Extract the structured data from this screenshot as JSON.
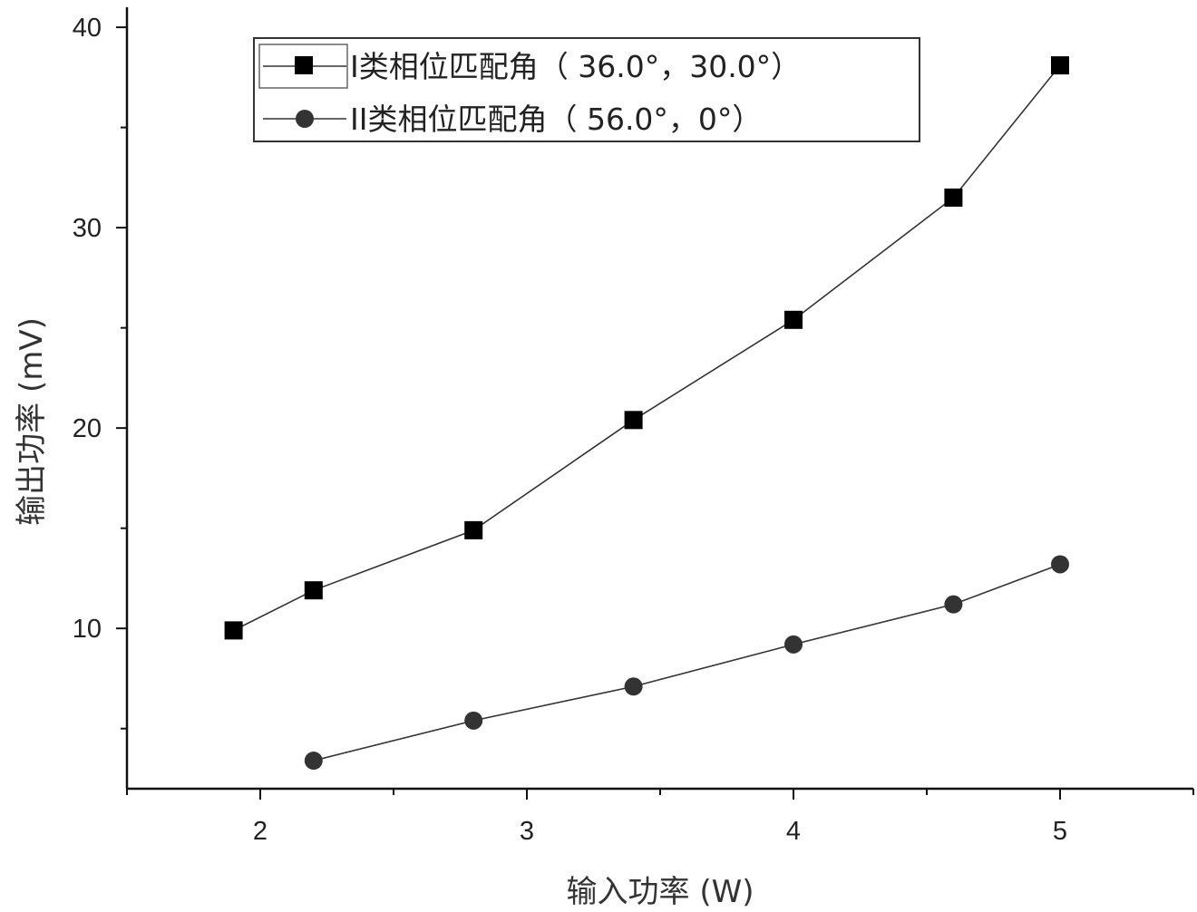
{
  "chart_data": {
    "type": "line",
    "xlabel": "输入功率 (W)",
    "ylabel": "输出功率 (mV)",
    "xlim": [
      1.5,
      5.5
    ],
    "ylim": [
      2,
      41
    ],
    "x_ticks": [
      2,
      3,
      4,
      5
    ],
    "x_tick_labels": [
      "2",
      "3",
      "4",
      "5"
    ],
    "y_ticks": [
      10,
      20,
      30,
      40
    ],
    "y_tick_labels": [
      "10",
      "20",
      "30",
      "40"
    ],
    "grid": false,
    "legend_position": "top",
    "series": [
      {
        "name": "I类相位匹配角（ 36.0°，30.0°）",
        "marker": "square",
        "color": "#000000",
        "x": [
          1.9,
          2.2,
          2.8,
          3.4,
          4.0,
          4.6,
          5.0
        ],
        "y": [
          9.9,
          11.9,
          14.9,
          20.4,
          25.4,
          31.5,
          38.1
        ]
      },
      {
        "name": "II类相位匹配角（ 56.0°，0°）",
        "marker": "circle",
        "color": "#333333",
        "x": [
          2.2,
          2.8,
          3.4,
          4.0,
          4.6,
          5.0
        ],
        "y": [
          3.4,
          5.4,
          7.1,
          9.2,
          11.2,
          13.2
        ]
      }
    ]
  }
}
